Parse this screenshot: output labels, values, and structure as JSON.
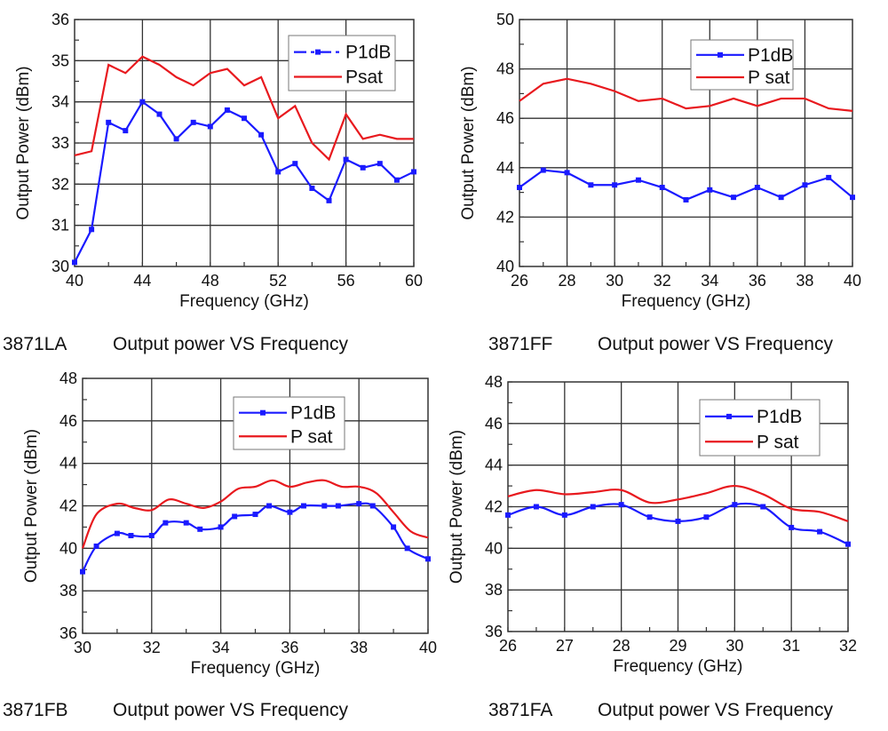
{
  "chart_data": [
    {
      "type": "line",
      "caption_id": "3871LA",
      "caption_text": "Output power VS Frequency",
      "xlabel": "Frequency (GHz)",
      "ylabel": "Output Power (dBm)",
      "xlim": [
        40,
        60
      ],
      "ylim": [
        30,
        36
      ],
      "xticks": [
        40,
        44,
        48,
        52,
        56,
        60
      ],
      "yticks": [
        30,
        31,
        32,
        33,
        34,
        35,
        36
      ],
      "grid": true,
      "legend": "top-right",
      "smooth": false,
      "x": [
        40,
        41,
        42,
        43,
        44,
        45,
        46,
        47,
        48,
        49,
        50,
        51,
        52,
        53,
        54,
        55,
        56,
        57,
        58,
        59,
        60
      ],
      "series": [
        {
          "name": "P1dB",
          "color": "#1a1aff",
          "markers": true,
          "legend_style": "dash-dot",
          "values": [
            30.1,
            30.9,
            33.5,
            33.3,
            34.0,
            33.7,
            33.1,
            33.5,
            33.4,
            33.8,
            33.6,
            33.2,
            32.3,
            32.5,
            31.9,
            31.6,
            32.6,
            32.4,
            32.5,
            32.1,
            32.3
          ]
        },
        {
          "name": "Psat",
          "color": "#e8191e",
          "markers": false,
          "values": [
            32.7,
            32.8,
            34.9,
            34.7,
            35.1,
            34.9,
            34.6,
            34.4,
            34.7,
            34.8,
            34.4,
            34.6,
            33.6,
            33.9,
            33.0,
            32.6,
            33.7,
            33.1,
            33.2,
            33.1,
            33.1
          ]
        }
      ]
    },
    {
      "type": "line",
      "caption_id": "3871FF",
      "caption_text": "Output power VS Frequency",
      "xlabel": "Frequency  (GHz)",
      "ylabel": "Output Power  (dBm)",
      "xlim": [
        26,
        40
      ],
      "ylim": [
        40,
        50
      ],
      "xticks": [
        26,
        28,
        30,
        32,
        34,
        36,
        38,
        40
      ],
      "yticks": [
        40,
        42,
        44,
        46,
        48,
        50
      ],
      "grid": true,
      "legend": "top-right",
      "smooth": false,
      "x": [
        26,
        27,
        28,
        29,
        30,
        31,
        32,
        33,
        34,
        35,
        36,
        37,
        38,
        39,
        40
      ],
      "series": [
        {
          "name": "P1dB",
          "color": "#1a1aff",
          "markers": true,
          "values": [
            43.2,
            43.9,
            43.8,
            43.3,
            43.3,
            43.5,
            43.2,
            42.7,
            43.1,
            42.8,
            43.2,
            42.8,
            43.3,
            43.6,
            42.8
          ]
        },
        {
          "name": "P sat",
          "color": "#e8191e",
          "markers": false,
          "values": [
            46.7,
            47.4,
            47.6,
            47.4,
            47.1,
            46.7,
            46.8,
            46.4,
            46.5,
            46.8,
            46.5,
            46.8,
            46.8,
            46.4,
            46.3
          ]
        }
      ]
    },
    {
      "type": "line",
      "caption_id": "3871FB",
      "caption_text": "Output power VS Frequency",
      "xlabel": "Frequency  (GHz)",
      "ylabel": "Output Power  (dBm)",
      "xlim": [
        30,
        40
      ],
      "ylim": [
        36,
        48
      ],
      "xticks": [
        30,
        32,
        34,
        36,
        38,
        40
      ],
      "yticks": [
        36,
        38,
        40,
        42,
        44,
        46,
        48
      ],
      "grid": true,
      "legend": "top-center",
      "smooth": true,
      "series": [
        {
          "name": "P1dB",
          "color": "#1a1aff",
          "markers": true,
          "x": [
            30,
            30.4,
            31,
            31.4,
            32,
            32.4,
            33,
            33.4,
            34,
            34.4,
            35,
            35.4,
            36,
            36.4,
            37,
            37.4,
            38,
            38.4,
            39,
            39.4,
            40
          ],
          "values": [
            38.9,
            40.1,
            40.7,
            40.6,
            40.6,
            41.2,
            41.2,
            40.9,
            41.0,
            41.5,
            41.6,
            42.0,
            41.7,
            42.0,
            42.0,
            42.0,
            42.1,
            42.0,
            41.0,
            40.0,
            39.5
          ]
        },
        {
          "name": "P sat",
          "color": "#e8191e",
          "markers": false,
          "x": [
            30,
            30.4,
            31,
            31.5,
            32,
            32.5,
            33,
            33.5,
            34,
            34.5,
            35,
            35.5,
            36,
            36.5,
            37,
            37.5,
            38,
            38.5,
            39,
            39.5,
            40
          ],
          "values": [
            40.0,
            41.6,
            42.1,
            41.9,
            41.8,
            42.3,
            42.1,
            41.9,
            42.2,
            42.8,
            42.9,
            43.2,
            42.9,
            43.1,
            43.2,
            42.9,
            42.9,
            42.6,
            41.7,
            40.8,
            40.5
          ]
        }
      ]
    },
    {
      "type": "line",
      "caption_id": "3871FA",
      "caption_text": "Output power VS Frequency",
      "xlabel": "Frequency  (GHz)",
      "ylabel": "Output Power  (dBm)",
      "xlim": [
        26,
        32
      ],
      "ylim": [
        36,
        48
      ],
      "xticks": [
        26,
        27,
        28,
        29,
        30,
        31,
        32
      ],
      "yticks": [
        36,
        38,
        40,
        42,
        44,
        46,
        48
      ],
      "grid": true,
      "legend": "top-right",
      "smooth": true,
      "x": [
        26,
        26.5,
        27,
        27.5,
        28,
        28.5,
        29,
        29.5,
        30,
        30.5,
        31,
        31.5,
        32
      ],
      "series": [
        {
          "name": "P1dB",
          "color": "#1a1aff",
          "markers": true,
          "values": [
            41.6,
            42.0,
            41.6,
            42.0,
            42.1,
            41.5,
            41.3,
            41.5,
            42.1,
            42.0,
            41.0,
            40.8,
            40.2
          ]
        },
        {
          "name": "P sat",
          "color": "#e8191e",
          "markers": false,
          "values": [
            42.5,
            42.8,
            42.6,
            42.7,
            42.8,
            42.2,
            42.35,
            42.65,
            43.0,
            42.6,
            41.9,
            41.75,
            41.3
          ]
        }
      ]
    }
  ]
}
